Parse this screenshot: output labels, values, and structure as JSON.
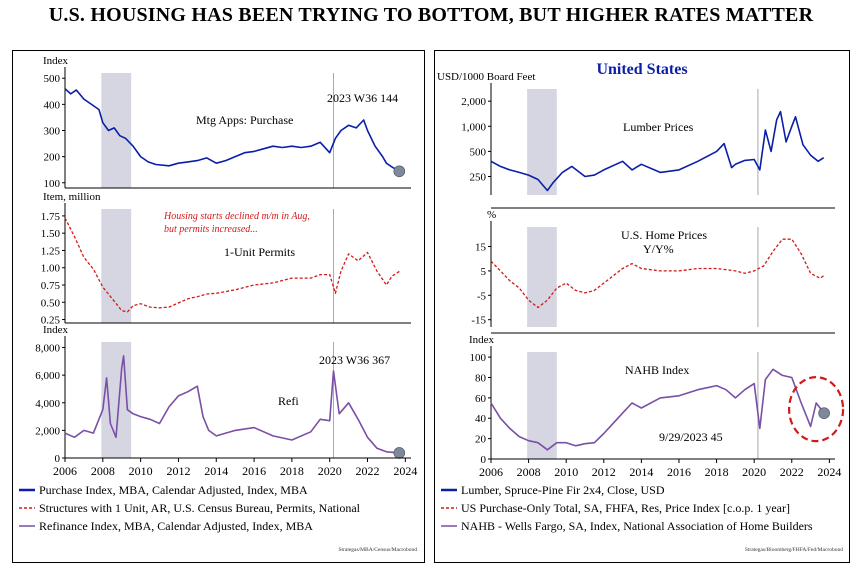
{
  "title": "U.S. HOUSING HAS BEEN TRYING TO BOTTOM, BUT HIGHER RATES MATTER",
  "colors": {
    "blue": "#0a1ea8",
    "red": "#d11a1a",
    "purple": "#7a4fa6",
    "recession": "#d6d6e2",
    "grid": "#aaaaaa",
    "marker": "#7d8898",
    "circle": "#d11a1a"
  },
  "left": {
    "x_ticks": [
      "2006",
      "2008",
      "2010",
      "2012",
      "2014",
      "2016",
      "2018",
      "2020",
      "2022",
      "2024"
    ],
    "legend": [
      {
        "text": "Purchase Index, MBA, Calendar Adjusted, Index, MBA",
        "style": "solid-blue"
      },
      {
        "text": "Structures with 1 Unit, AR, U.S. Census Bureau, Permits, National",
        "style": "dashed-red"
      },
      {
        "text": "Refinance Index, MBA, Calendar Adjusted, Index, MBA",
        "style": "solid-purple"
      }
    ],
    "source": "Strategas/MBA/Census/Macrobond"
  },
  "right": {
    "header": "United States",
    "x_ticks": [
      "2006",
      "2008",
      "2010",
      "2012",
      "2014",
      "2016",
      "2018",
      "2020",
      "2022",
      "2024"
    ],
    "legend": [
      {
        "text": "Lumber, Spruce-Pine Fir 2x4, Close, USD",
        "style": "solid-blue"
      },
      {
        "text": "US Purchase-Only Total, SA, FHFA, Res, Price Index [c.o.p. 1 year]",
        "style": "dashed-red"
      },
      {
        "text": "NAHB - Wells Fargo, SA, Index, National Association of Home Builders",
        "style": "solid-purple"
      }
    ],
    "source": "Strategas/Bloomberg/FHFA/Fed/Macrobond"
  },
  "chart_data": [
    {
      "type": "line",
      "id": "mtg-purchase",
      "unit": "Index",
      "label": "Mtg Apps: Purchase",
      "annotation": "2023 W36 144",
      "yticks": [
        "500",
        "400",
        "300",
        "200",
        "100"
      ],
      "ylim": [
        80,
        520
      ],
      "recession": [
        2007.92,
        2009.5
      ],
      "marker": {
        "x": 2023.68,
        "y": 144
      },
      "style": "solid",
      "color": "blue",
      "x": [
        2006,
        2006.3,
        2006.6,
        2007,
        2007.4,
        2007.8,
        2008,
        2008.3,
        2008.6,
        2008.9,
        2009.2,
        2009.6,
        2010,
        2010.4,
        2010.8,
        2011.5,
        2012,
        2012.5,
        2013,
        2013.5,
        2014,
        2014.5,
        2015,
        2015.5,
        2016,
        2016.5,
        2017,
        2017.5,
        2018,
        2018.5,
        2019,
        2019.5,
        2020,
        2020.3,
        2020.6,
        2021,
        2021.4,
        2021.8,
        2022,
        2022.4,
        2022.8,
        2023,
        2023.3,
        2023.68
      ],
      "y": [
        460,
        440,
        455,
        420,
        400,
        380,
        330,
        300,
        310,
        280,
        270,
        240,
        200,
        180,
        170,
        165,
        175,
        180,
        185,
        195,
        175,
        185,
        200,
        215,
        220,
        230,
        240,
        235,
        240,
        235,
        240,
        255,
        215,
        270,
        300,
        320,
        310,
        340,
        300,
        240,
        200,
        175,
        160,
        144
      ]
    },
    {
      "type": "line",
      "id": "permits",
      "unit": "Item, million",
      "label": "1-Unit Permits",
      "annotation": "Housing starts declined m/m in Aug, but permits increased...",
      "yticks": [
        "1.75",
        "1.50",
        "1.25",
        "1.00",
        "0.75",
        "0.50",
        "0.25"
      ],
      "ylim": [
        0.2,
        1.85
      ],
      "recession": [
        2007.92,
        2009.5
      ],
      "style": "dashed",
      "color": "red",
      "x": [
        2006,
        2006.5,
        2007,
        2007.5,
        2008,
        2008.5,
        2009,
        2009.3,
        2009.6,
        2010,
        2010.5,
        2011,
        2011.5,
        2012,
        2012.5,
        2013,
        2013.5,
        2014,
        2015,
        2016,
        2017,
        2018,
        2019,
        2019.5,
        2020,
        2020.3,
        2020.6,
        2021,
        2021.5,
        2022,
        2022.5,
        2023,
        2023.3,
        2023.7
      ],
      "y": [
        1.72,
        1.45,
        1.15,
        0.98,
        0.72,
        0.55,
        0.38,
        0.36,
        0.45,
        0.48,
        0.43,
        0.42,
        0.43,
        0.49,
        0.55,
        0.58,
        0.62,
        0.63,
        0.68,
        0.75,
        0.78,
        0.85,
        0.85,
        0.9,
        0.9,
        0.63,
        0.95,
        1.2,
        1.1,
        1.22,
        0.95,
        0.75,
        0.88,
        0.95
      ]
    },
    {
      "type": "line",
      "id": "refi",
      "unit": "Index",
      "label": "Refi",
      "annotation": "2023 W36 367",
      "yticks": [
        "8,000",
        "6,000",
        "4,000",
        "2,000",
        "0"
      ],
      "ylim": [
        0,
        8400
      ],
      "recession": [
        2007.92,
        2009.5
      ],
      "marker": {
        "x": 2023.68,
        "y": 367
      },
      "style": "solid",
      "color": "purple",
      "x": [
        2006,
        2006.5,
        2007,
        2007.5,
        2008,
        2008.2,
        2008.4,
        2008.7,
        2009,
        2009.1,
        2009.3,
        2009.6,
        2010,
        2010.5,
        2011,
        2011.5,
        2012,
        2012.5,
        2013,
        2013.3,
        2013.6,
        2014,
        2015,
        2016,
        2017,
        2018,
        2019,
        2019.5,
        2020,
        2020.2,
        2020.5,
        2021,
        2021.5,
        2022,
        2022.5,
        2023,
        2023.68
      ],
      "y": [
        1800,
        1500,
        2000,
        1800,
        3500,
        5800,
        2500,
        1500,
        6500,
        7400,
        3500,
        3200,
        3000,
        2800,
        2500,
        3700,
        4500,
        4800,
        5200,
        3000,
        2000,
        1600,
        2000,
        2200,
        1600,
        1300,
        1900,
        2800,
        2700,
        6300,
        3200,
        4000,
        2800,
        1500,
        700,
        450,
        367
      ]
    },
    {
      "type": "line",
      "id": "lumber",
      "unit": "USD/1000 Board Feet",
      "label": "Lumber Prices",
      "yticks": [
        "2,000",
        "1,000",
        "500",
        "250"
      ],
      "ytick_values": [
        2000,
        1000,
        500,
        250
      ],
      "scale": "log",
      "ylim": [
        150,
        2800
      ],
      "recession": [
        2007.92,
        2009.5
      ],
      "style": "solid",
      "color": "blue",
      "x": [
        2006,
        2006.5,
        2007,
        2007.5,
        2008,
        2008.5,
        2009,
        2009.3,
        2009.8,
        2010.3,
        2011,
        2011.5,
        2012,
        2013,
        2013.5,
        2014,
        2015,
        2016,
        2017,
        2018,
        2018.4,
        2018.8,
        2019,
        2019.5,
        2020,
        2020.3,
        2020.6,
        2020.9,
        2021.2,
        2021.4,
        2021.7,
        2022,
        2022.2,
        2022.6,
        2023,
        2023.4,
        2023.7
      ],
      "y": [
        380,
        330,
        300,
        280,
        260,
        230,
        170,
        210,
        280,
        330,
        250,
        260,
        300,
        380,
        300,
        350,
        280,
        300,
        380,
        500,
        620,
        320,
        350,
        390,
        400,
        300,
        900,
        500,
        1200,
        1500,
        650,
        1000,
        1300,
        600,
        450,
        380,
        420
      ]
    },
    {
      "type": "line",
      "id": "home-prices",
      "unit": "%",
      "label": "U.S. Home Prices Y/Y%",
      "yticks": [
        "15",
        "5",
        "-5",
        "-15"
      ],
      "ylim": [
        -18,
        23
      ],
      "recession": [
        2007.92,
        2009.5
      ],
      "style": "dashed",
      "color": "red",
      "x": [
        2006,
        2006.5,
        2007,
        2007.5,
        2008,
        2008.5,
        2009,
        2009.5,
        2010,
        2010.5,
        2011,
        2011.5,
        2012,
        2012.5,
        2013,
        2013.5,
        2014,
        2015,
        2016,
        2017,
        2018,
        2019,
        2019.5,
        2020,
        2020.5,
        2021,
        2021.5,
        2022,
        2022.5,
        2023,
        2023.5,
        2023.7
      ],
      "y": [
        9,
        5,
        1,
        -2,
        -7,
        -10,
        -7,
        -2,
        0,
        -3,
        -4,
        -3,
        0,
        3,
        6,
        8,
        6,
        5,
        5,
        6,
        6,
        5,
        4,
        5,
        7,
        13,
        18,
        18,
        12,
        4,
        2,
        3
      ]
    },
    {
      "type": "line",
      "id": "nahb",
      "unit": "Index",
      "label": "NAHB Index",
      "annotation": "9/29/2023 45",
      "yticks": [
        "100",
        "80",
        "60",
        "40",
        "20",
        "0"
      ],
      "ylim": [
        0,
        105
      ],
      "recession": [
        2007.92,
        2009.5
      ],
      "marker": {
        "x": 2023.72,
        "y": 45
      },
      "highlight_circle": true,
      "style": "solid",
      "color": "purple",
      "x": [
        2006,
        2006.5,
        2007,
        2007.5,
        2008,
        2008.5,
        2009,
        2009.5,
        2010,
        2010.5,
        2011,
        2011.5,
        2012,
        2012.5,
        2013,
        2013.5,
        2014,
        2015,
        2016,
        2017,
        2017.5,
        2018,
        2018.5,
        2019,
        2019.5,
        2020,
        2020.3,
        2020.6,
        2021,
        2021.5,
        2022,
        2022.5,
        2023,
        2023.3,
        2023.72
      ],
      "y": [
        55,
        40,
        30,
        22,
        18,
        16,
        9,
        16,
        16,
        13,
        15,
        16,
        25,
        35,
        45,
        55,
        50,
        60,
        62,
        68,
        70,
        72,
        68,
        60,
        68,
        74,
        30,
        78,
        88,
        82,
        80,
        55,
        32,
        55,
        45
      ]
    }
  ]
}
